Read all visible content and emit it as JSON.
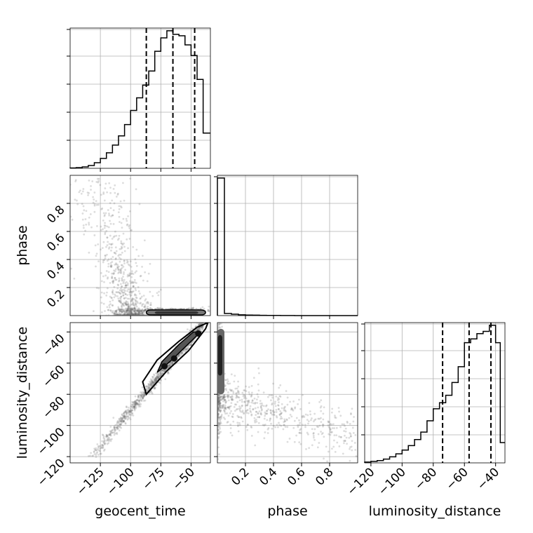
{
  "chart_data": {
    "type": "corner",
    "parameters": [
      "geocent_time",
      "phase",
      "luminosity_distance"
    ],
    "axis_labels": {
      "geocent_time": "geocent_time",
      "phase": "phase",
      "luminosity_distance": "luminosity_distance"
    },
    "ranges": {
      "geocent_time": [
        -150,
        -34
      ],
      "phase": [
        0.0,
        1.0
      ],
      "luminosity_distance": [
        -124,
        -34
      ]
    },
    "ticks": {
      "geocent_time": [
        -125,
        -100,
        -75,
        -50
      ],
      "phase": [
        0.2,
        0.4,
        0.6,
        0.8
      ],
      "luminosity_distance": [
        -120,
        -100,
        -80,
        -60,
        -40
      ]
    },
    "tick_labels": {
      "geocent_time": [
        "−125",
        "−100",
        "−75",
        "−50"
      ],
      "phase": [
        "0.2",
        "0.4",
        "0.6",
        "0.8"
      ],
      "luminosity_distance": [
        "−120",
        "−100",
        "−80",
        "−60",
        "−40"
      ]
    },
    "quantiles": {
      "geocent_time": [
        -87,
        -65,
        -47
      ],
      "luminosity_distance": [
        -74,
        -57,
        -43
      ]
    },
    "histograms": {
      "geocent_time": {
        "bin_edges": [
          -150,
          -145,
          -140,
          -135,
          -130,
          -125,
          -120,
          -115,
          -110,
          -105,
          -100,
          -95,
          -90,
          -85,
          -80,
          -75,
          -70,
          -65,
          -60,
          -55,
          -50,
          -45,
          -40,
          -34
        ],
        "counts": [
          0.5,
          1,
          2,
          4,
          8,
          14,
          22,
          33,
          46,
          62,
          82,
          100,
          118,
          138,
          166,
          185,
          195,
          190,
          188,
          175,
          160,
          126,
          50
        ]
      },
      "phase": {
        "bin_edges": [
          0.0,
          0.05,
          0.1,
          0.15,
          0.2,
          0.25,
          0.3,
          0.35,
          0.4,
          0.45,
          0.5,
          0.55,
          0.6,
          0.65,
          0.7,
          0.75,
          0.8,
          0.85,
          0.9,
          0.95,
          1.0
        ],
        "counts": [
          100,
          1.5,
          1,
          0.6,
          0.4,
          0.3,
          0.2,
          0.1,
          0.1,
          0.05,
          0.05,
          0,
          0,
          0,
          0,
          0,
          0,
          0,
          0,
          0
        ]
      },
      "luminosity_distance": {
        "bin_edges": [
          -124,
          -120,
          -116,
          -112,
          -108,
          -104,
          -100,
          -96,
          -92,
          -88,
          -84,
          -80,
          -76,
          -72,
          -68,
          -64,
          -60,
          -56,
          -52,
          -48,
          -44,
          -40,
          -37,
          -34
        ],
        "counts": [
          1,
          2,
          3,
          5,
          8,
          12,
          17,
          23,
          31,
          41,
          56,
          72,
          80,
          90,
          107,
          128,
          160,
          165,
          172,
          175,
          183,
          160,
          27
        ]
      }
    }
  }
}
